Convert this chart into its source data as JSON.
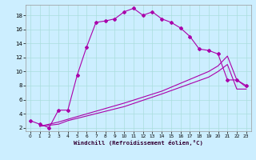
{
  "xlabel": "Windchill (Refroidissement éolien,°C)",
  "bg_color": "#cceeff",
  "grid_color": "#aadddd",
  "line_color": "#aa00aa",
  "xlim": [
    -0.5,
    23.5
  ],
  "ylim": [
    1.5,
    19.5
  ],
  "xticks": [
    0,
    1,
    2,
    3,
    4,
    5,
    6,
    7,
    8,
    9,
    10,
    11,
    12,
    13,
    14,
    15,
    16,
    17,
    18,
    19,
    20,
    21,
    22,
    23
  ],
  "yticks": [
    2,
    4,
    6,
    8,
    10,
    12,
    14,
    16,
    18
  ],
  "curve1_x": [
    0,
    1,
    2,
    3,
    4,
    5,
    6,
    7,
    8,
    9,
    10,
    11,
    12,
    13,
    14,
    15,
    16,
    17,
    18,
    19,
    20,
    21,
    22,
    23
  ],
  "curve1_y": [
    3.0,
    2.5,
    2.0,
    4.5,
    4.5,
    9.5,
    13.5,
    17.0,
    17.2,
    17.5,
    18.5,
    19.0,
    18.0,
    18.5,
    17.5,
    17.0,
    16.2,
    15.0,
    13.2,
    13.0,
    12.5,
    8.8,
    8.8,
    8.0
  ],
  "curve2_x": [
    1,
    3,
    4,
    10,
    14,
    19,
    20,
    21,
    22,
    23
  ],
  "curve2_y": [
    2.2,
    2.8,
    3.2,
    5.5,
    7.2,
    10.0,
    10.8,
    12.2,
    8.8,
    7.8
  ],
  "curve3_x": [
    1,
    3,
    4,
    10,
    14,
    19,
    20,
    21,
    22,
    23
  ],
  "curve3_y": [
    2.2,
    2.5,
    3.0,
    5.0,
    6.8,
    9.2,
    10.0,
    11.0,
    7.5,
    7.5
  ]
}
